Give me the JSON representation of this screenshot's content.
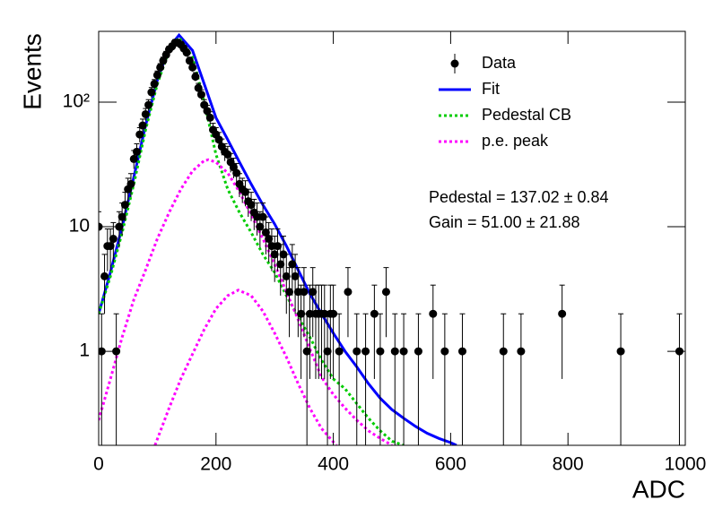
{
  "chart_data": {
    "type": "line",
    "x_label": "ADC",
    "y_label": "Events",
    "log_y": true,
    "legend": "upper right",
    "annotations": [
      "Pedestal = 137.02 ± 0.84",
      "Gain = 51.00 ± 21.88"
    ],
    "xlim": [
      0,
      1000
    ],
    "xticks": [
      0,
      200,
      400,
      600,
      800,
      1000
    ],
    "ylim": [
      0.176,
      370
    ],
    "yticks": [
      1,
      10,
      {
        "value": 100,
        "label": "10²"
      }
    ],
    "series": [
      {
        "name": "Data",
        "type": "scatter",
        "color": "#000000",
        "x": [
          0,
          5,
          10,
          15,
          20,
          25,
          30,
          35,
          40,
          45,
          50,
          55,
          60,
          65,
          70,
          75,
          80,
          85,
          90,
          95,
          100,
          105,
          110,
          115,
          120,
          125,
          130,
          135,
          140,
          145,
          150,
          155,
          160,
          165,
          170,
          175,
          180,
          185,
          190,
          195,
          200,
          205,
          210,
          215,
          220,
          225,
          230,
          235,
          240,
          245,
          250,
          255,
          260,
          265,
          270,
          275,
          280,
          285,
          290,
          295,
          300,
          305,
          310,
          315,
          320,
          325,
          330,
          335,
          340,
          345,
          350,
          355,
          360,
          365,
          370,
          375,
          380,
          385,
          390,
          395,
          400,
          410,
          425,
          440,
          455,
          470,
          480,
          490,
          505,
          520,
          545,
          570,
          590,
          620,
          690,
          720,
          790,
          890,
          990
        ],
        "values": [
          10,
          1,
          4,
          7,
          7,
          8,
          1,
          10,
          12,
          15,
          20,
          22,
          35,
          40,
          55,
          65,
          80,
          95,
          120,
          140,
          165,
          190,
          215,
          240,
          265,
          280,
          300,
          300,
          290,
          270,
          250,
          215,
          190,
          160,
          130,
          115,
          95,
          85,
          75,
          60,
          55,
          50,
          44,
          40,
          38,
          33,
          30,
          27,
          22,
          20,
          19,
          16,
          15,
          13,
          12,
          10,
          12,
          9,
          8,
          7,
          6,
          7,
          5,
          6,
          4,
          3,
          5,
          4,
          3,
          2,
          3,
          1,
          2,
          3,
          2,
          2,
          2,
          2,
          1,
          2,
          2,
          1,
          3,
          1,
          1,
          2,
          1,
          3,
          1,
          1,
          1,
          2,
          1,
          1,
          1,
          1,
          2,
          1,
          1
        ],
        "errors": [
          3.2,
          1,
          2,
          2.6,
          2.6,
          2.8,
          1,
          3.2,
          3.5,
          3.9,
          4.5,
          4.7,
          5.9,
          6.3,
          7.4,
          8.1,
          8.9,
          9.7,
          11,
          11.8,
          12.8,
          13.8,
          14.7,
          15.5,
          16.3,
          16.7,
          17.3,
          17.3,
          17,
          16.4,
          15.8,
          14.7,
          13.8,
          12.6,
          11.4,
          10.7,
          9.7,
          9.2,
          8.7,
          7.7,
          7.4,
          7.1,
          6.6,
          6.3,
          6.2,
          5.7,
          5.5,
          5.2,
          4.7,
          4.5,
          4.4,
          4,
          3.9,
          3.6,
          3.5,
          3.2,
          3.5,
          3,
          2.8,
          2.6,
          2.4,
          2.6,
          2.2,
          2.4,
          2,
          1.7,
          2.2,
          2,
          1.7,
          1.4,
          1.7,
          1,
          1.4,
          1.7,
          1.4,
          1.4,
          1.4,
          1.4,
          1,
          1.4,
          1.4,
          1,
          1.7,
          1,
          1,
          1.4,
          1,
          1.7,
          1,
          1,
          1,
          1.4,
          1,
          1,
          1,
          1,
          1.4,
          1,
          1
        ]
      },
      {
        "name": "Fit",
        "type": "line",
        "color": "#0000ff",
        "dashed": false,
        "x": [
          0,
          20,
          40,
          60,
          80,
          100,
          120,
          137,
          160,
          180,
          200,
          220,
          240,
          260,
          280,
          300,
          320,
          340,
          360,
          380,
          400,
          420,
          440,
          460,
          480,
          500,
          520,
          540,
          560,
          580,
          600,
          610
        ],
        "values": [
          2.0,
          4.3,
          10,
          25,
          65,
          150,
          275,
          345,
          260,
          140,
          75,
          50,
          33,
          22,
          15,
          10.5,
          7,
          4.5,
          2.9,
          2.0,
          1.4,
          1.0,
          0.75,
          0.55,
          0.42,
          0.34,
          0.29,
          0.25,
          0.22,
          0.2,
          0.185,
          0.176
        ]
      },
      {
        "name": "Pedestal CB",
        "type": "line",
        "color": "#00cc00",
        "dashed": true,
        "x": [
          0,
          20,
          40,
          60,
          80,
          100,
          120,
          137,
          160,
          180,
          200,
          220,
          240,
          260,
          280,
          300,
          320,
          340,
          360,
          380,
          400,
          420,
          440,
          460,
          480,
          500,
          520
        ],
        "values": [
          2.0,
          4,
          9,
          22,
          60,
          140,
          260,
          330,
          230,
          100,
          38,
          20,
          13,
          9,
          6,
          4.3,
          2.8,
          1.9,
          1.3,
          0.85,
          0.6,
          0.5,
          0.38,
          0.29,
          0.23,
          0.19,
          0.176
        ]
      },
      {
        "name": "p.e. peak",
        "type": "line",
        "color": "#ff00ff",
        "dashed": true,
        "x": [
          0,
          20,
          40,
          60,
          80,
          100,
          120,
          140,
          160,
          180,
          187,
          200,
          220,
          240,
          260,
          280,
          300,
          320,
          340,
          360,
          380,
          400,
          420,
          440,
          460,
          480,
          500,
          null,
          96,
          120,
          140,
          160,
          180,
          200,
          220,
          238,
          260,
          280,
          300,
          320,
          340,
          360,
          380,
          405
        ],
        "values": [
          0.28,
          0.6,
          1.3,
          2.6,
          4.5,
          8,
          13,
          20,
          28,
          34,
          34.5,
          33,
          27,
          19,
          12.5,
          8,
          5,
          3.0,
          1.8,
          1.05,
          0.62,
          0.45,
          0.35,
          0.28,
          0.23,
          0.2,
          0.176,
          null,
          0.176,
          0.35,
          0.6,
          0.95,
          1.5,
          2.2,
          2.8,
          3.1,
          2.8,
          2.1,
          1.4,
          0.9,
          0.55,
          0.35,
          0.24,
          0.176
        ]
      }
    ]
  }
}
